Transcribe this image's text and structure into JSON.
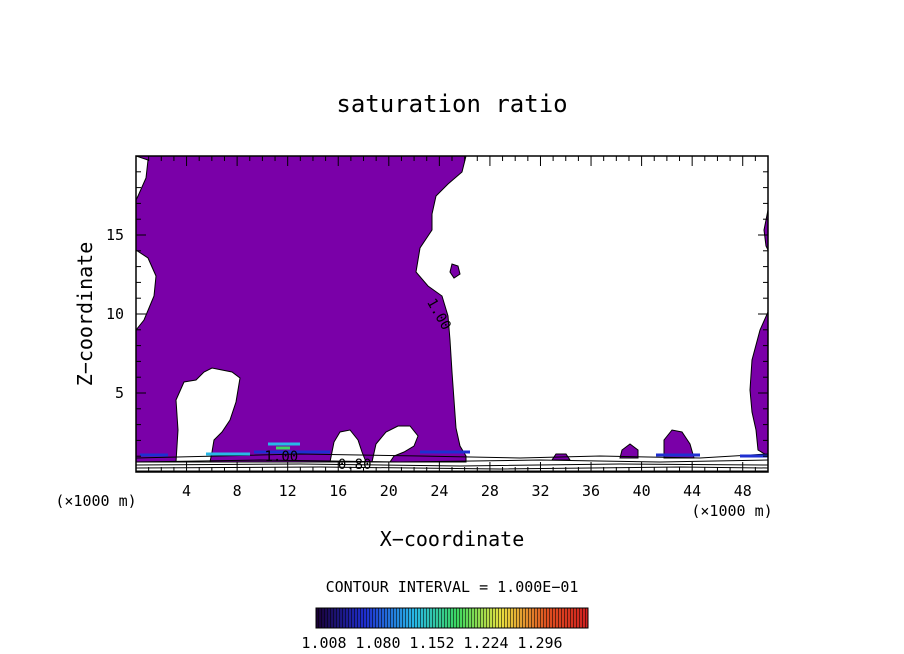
{
  "chart_data": {
    "type": "contour",
    "title": "saturation ratio",
    "xlabel": "X−coordinate",
    "ylabel": "Z−coordinate",
    "x_unit": "(×1000 m)",
    "z_unit": "(×1000 m)",
    "xlim": [
      0,
      50
    ],
    "ylim": [
      0,
      20
    ],
    "x_ticks": [
      4,
      8,
      12,
      16,
      20,
      24,
      28,
      32,
      36,
      40,
      44,
      48
    ],
    "y_ticks": [
      5,
      10,
      15
    ],
    "contour_labels": [
      {
        "text": "1.00",
        "x": 24,
        "y": 10
      },
      {
        "text": "1.00",
        "x": 11.5,
        "y": 1.0
      },
      {
        "text": "0.80",
        "x": 17.3,
        "y": 0.5
      }
    ],
    "filled_color": "#7a00a8",
    "contour_interval_text": "CONTOUR INTERVAL = 1.000E−01",
    "colorbar": {
      "labels": [
        "1.008",
        "1.080",
        "1.152",
        "1.224",
        "1.296"
      ],
      "colors": [
        "#1a0033",
        "#1f2fd0",
        "#28b8e8",
        "#3dd860",
        "#e8e040",
        "#e05020",
        "#d02020"
      ]
    }
  }
}
